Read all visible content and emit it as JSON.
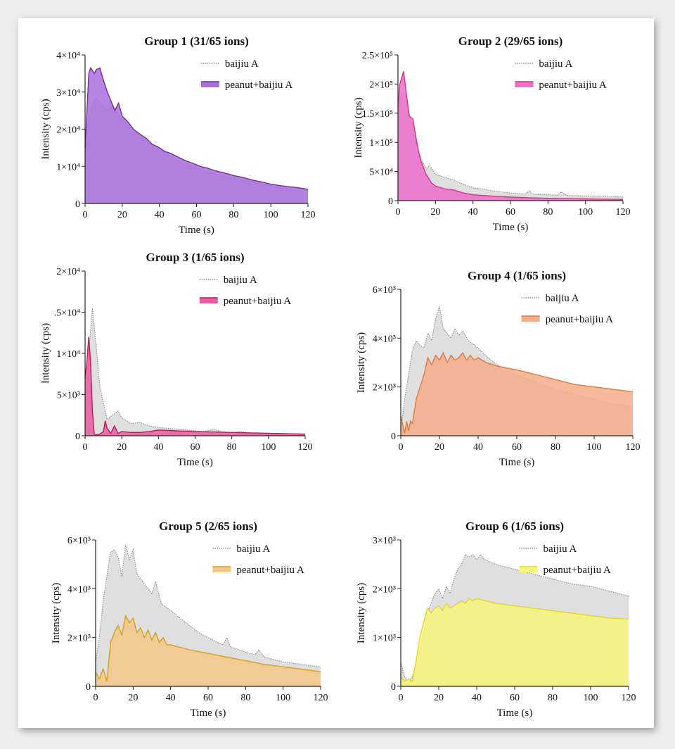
{
  "chart_data": [
    {
      "type": "area",
      "title": "Group 1 (31/65 ions)",
      "xlabel": "Time (s)",
      "ylabel": "Intensity (cps)",
      "xlim": [
        0,
        120
      ],
      "ylim": [
        0,
        40000
      ],
      "xticks": [
        "0",
        "20",
        "40",
        "60",
        "80",
        "100",
        "120"
      ],
      "yticks": [
        "0",
        "1×10⁴",
        "2×10⁴",
        "3×10⁴",
        "4×10⁴"
      ],
      "legend": "top-right",
      "series": [
        {
          "name": "baijiu A",
          "color": "#c8c8c8",
          "fill": "#d9d9d9",
          "dotted": true,
          "x": [
            0,
            2,
            4,
            6,
            8,
            10,
            12,
            15,
            18,
            20,
            25,
            30,
            35,
            40,
            45,
            50,
            55,
            60,
            65,
            70,
            75,
            80,
            85,
            90,
            95,
            100,
            105,
            110,
            115,
            120
          ],
          "y": [
            12000,
            22000,
            27000,
            28500,
            27000,
            26000,
            25000,
            26500,
            24000,
            22500,
            20000,
            18000,
            16000,
            14500,
            13000,
            11500,
            10500,
            9500,
            8500,
            8000,
            7300,
            6800,
            6300,
            5800,
            5300,
            4800,
            4300,
            3800,
            3400,
            3000
          ]
        },
        {
          "name": "peanut+baijiu A",
          "color": "#7a2e8c",
          "fill": "#a86ee0",
          "x": [
            0,
            2,
            3,
            5,
            6,
            8,
            10,
            12,
            14,
            16,
            18,
            20,
            23,
            26,
            30,
            33,
            36,
            40,
            43,
            46,
            50,
            54,
            58,
            62,
            66,
            70,
            75,
            80,
            85,
            90,
            95,
            100,
            105,
            110,
            115,
            120
          ],
          "y": [
            15000,
            35000,
            36500,
            35000,
            36000,
            36500,
            33000,
            30000,
            27500,
            25000,
            27000,
            23500,
            22000,
            20000,
            18500,
            17500,
            16000,
            15000,
            14000,
            13500,
            12500,
            11500,
            10800,
            10000,
            9500,
            8800,
            8200,
            7500,
            7000,
            6300,
            5800,
            5200,
            4800,
            4500,
            4200,
            3800
          ]
        }
      ]
    },
    {
      "type": "area",
      "title": "Group 2 (29/65 ions)",
      "xlabel": "Time (s)",
      "ylabel": "Intensity (cps)",
      "xlim": [
        0,
        120
      ],
      "ylim": [
        0,
        250000
      ],
      "xticks": [
        "0",
        "20",
        "40",
        "60",
        "80",
        "100",
        "120"
      ],
      "yticks": [
        "0",
        "5×10⁴",
        "1×10⁵",
        "1.5×10⁵",
        "2×10⁵",
        "2.5×10⁵"
      ],
      "legend": "top-right",
      "series": [
        {
          "name": "baijiu A",
          "color": "#c8c8c8",
          "fill": "#d9d9d9",
          "dotted": true,
          "x": [
            0,
            2,
            4,
            6,
            8,
            10,
            12,
            15,
            17,
            20,
            25,
            30,
            35,
            40,
            45,
            50,
            55,
            60,
            65,
            68,
            70,
            72,
            75,
            80,
            85,
            87,
            90,
            95,
            100,
            110,
            120
          ],
          "y": [
            150000,
            185000,
            175000,
            150000,
            120000,
            95000,
            75000,
            55000,
            60000,
            45000,
            40000,
            35000,
            28000,
            22000,
            20000,
            17000,
            15000,
            13000,
            12000,
            11000,
            17000,
            11000,
            10500,
            10000,
            9500,
            15000,
            9000,
            8500,
            8000,
            7500,
            6000
          ]
        },
        {
          "name": "peanut+baijiu A",
          "color": "#d63384",
          "fill": "#ec6fcc",
          "x": [
            0,
            1,
            3,
            4,
            6,
            8,
            10,
            12,
            15,
            18,
            20,
            25,
            30,
            35,
            40,
            50,
            60,
            70,
            80,
            90,
            100,
            110,
            120
          ],
          "y": [
            160000,
            200000,
            222000,
            195000,
            145000,
            140000,
            100000,
            70000,
            45000,
            30000,
            25000,
            20000,
            18000,
            13000,
            10000,
            8000,
            6000,
            5000,
            4000,
            3500,
            3000,
            2500,
            2000
          ]
        }
      ]
    },
    {
      "type": "area",
      "title": "Group 3 (1/65 ions)",
      "xlabel": "Time (s)",
      "ylabel": "Intensity (cps)",
      "xlim": [
        0,
        120
      ],
      "ylim": [
        0,
        20000
      ],
      "xticks": [
        "0",
        "20",
        "40",
        "60",
        "80",
        "100",
        "120"
      ],
      "yticks": [
        "0",
        "5×10³",
        "1×10⁴",
        ".5×10⁴",
        "2×10⁴"
      ],
      "legend": "top-right",
      "series": [
        {
          "name": "baijiu A",
          "color": "#c8c8c8",
          "fill": "#d9d9d9",
          "dotted": true,
          "x": [
            0,
            2,
            4,
            6,
            8,
            10,
            12,
            15,
            18,
            20,
            25,
            30,
            35,
            40,
            45,
            50,
            55,
            60,
            65,
            70,
            75,
            80,
            85,
            90,
            95,
            100,
            110,
            120
          ],
          "y": [
            1000,
            10000,
            15500,
            11000,
            6000,
            4000,
            2000,
            2500,
            3000,
            2200,
            1500,
            1600,
            1200,
            1000,
            900,
            800,
            700,
            600,
            500,
            800,
            450,
            400,
            500,
            350,
            300,
            300,
            250,
            200
          ]
        },
        {
          "name": "peanut+baijiu A",
          "color": "#c2185b",
          "fill": "#e85d9e",
          "x": [
            0,
            1,
            2,
            3,
            4,
            5,
            6,
            8,
            10,
            11,
            12,
            14,
            16,
            18,
            20,
            25,
            30,
            35,
            40,
            50,
            60,
            70,
            80,
            90,
            100,
            110,
            120
          ],
          "y": [
            7000,
            9000,
            12000,
            9000,
            3000,
            200,
            100,
            200,
            500,
            1800,
            900,
            300,
            1200,
            300,
            500,
            400,
            400,
            500,
            700,
            600,
            500,
            450,
            400,
            350,
            300,
            250,
            200
          ]
        }
      ]
    },
    {
      "type": "area",
      "title": "Group 4 (1/65 ions)",
      "xlabel": "Time (s)",
      "ylabel": "Intensity (cps)",
      "xlim": [
        0,
        120
      ],
      "ylim": [
        0,
        6000
      ],
      "xticks": [
        "0",
        "20",
        "40",
        "60",
        "80",
        "100",
        "120"
      ],
      "yticks": [
        "0",
        "2×10³",
        "4×10³",
        "6×10³"
      ],
      "legend": "top-right",
      "series": [
        {
          "name": "baijiu A",
          "color": "#c8c8c8",
          "fill": "#d9d9d9",
          "dotted": true,
          "x": [
            0,
            2,
            4,
            6,
            8,
            10,
            12,
            14,
            16,
            18,
            20,
            22,
            24,
            26,
            28,
            30,
            32,
            35,
            40,
            45,
            50,
            60,
            70,
            80,
            90,
            100,
            110,
            120
          ],
          "y": [
            200,
            1500,
            2500,
            3500,
            3900,
            3700,
            3600,
            4200,
            3900,
            4800,
            5300,
            4400,
            4200,
            4000,
            4400,
            4100,
            4300,
            3900,
            3600,
            3200,
            2900,
            2500,
            2200,
            1900,
            1700,
            1500,
            1300,
            1200
          ]
        },
        {
          "name": "peanut+baijiu A",
          "color": "#e07b39",
          "fill": "#f4ad8a",
          "x": [
            0,
            2,
            3,
            4,
            5,
            6,
            8,
            10,
            12,
            14,
            16,
            18,
            20,
            22,
            24,
            26,
            28,
            30,
            32,
            34,
            36,
            38,
            40,
            44,
            50,
            60,
            70,
            80,
            90,
            100,
            110,
            120
          ],
          "y": [
            800,
            100,
            600,
            200,
            600,
            500,
            1500,
            2000,
            2500,
            3200,
            2900,
            3300,
            3100,
            3400,
            3000,
            3300,
            3100,
            3200,
            3400,
            3100,
            3300,
            3100,
            3200,
            3000,
            2850,
            2700,
            2500,
            2300,
            2100,
            2000,
            1900,
            1800
          ]
        }
      ]
    },
    {
      "type": "area",
      "title": "Group 5 (2/65 ions)",
      "xlabel": "Time (s)",
      "ylabel": "Intensity (cps)",
      "xlim": [
        0,
        120
      ],
      "ylim": [
        0,
        6000
      ],
      "xticks": [
        "0",
        "20",
        "40",
        "60",
        "80",
        "100",
        "120"
      ],
      "yticks": [
        "0",
        "2×10³",
        "4×10³",
        "6×10³"
      ],
      "legend": "top-right",
      "series": [
        {
          "name": "baijiu A",
          "color": "#c8c8c8",
          "fill": "#d9d9d9",
          "dotted": true,
          "x": [
            0,
            2,
            4,
            6,
            8,
            10,
            12,
            14,
            16,
            18,
            20,
            22,
            25,
            30,
            32,
            35,
            40,
            45,
            50,
            55,
            60,
            65,
            68,
            70,
            72,
            75,
            80,
            85,
            87,
            90,
            95,
            100,
            110,
            120
          ],
          "y": [
            1000,
            2000,
            3500,
            4500,
            5500,
            5600,
            5300,
            4500,
            5800,
            5200,
            5600,
            4600,
            4300,
            3800,
            4300,
            3400,
            3100,
            2800,
            2500,
            2200,
            2000,
            1800,
            1700,
            2000,
            1600,
            1550,
            1400,
            1300,
            1500,
            1200,
            1100,
            1000,
            900,
            800
          ]
        },
        {
          "name": "peanut+baijiu A",
          "color": "#d4a017",
          "fill": "#f5c88a",
          "x": [
            0,
            2,
            4,
            6,
            8,
            10,
            12,
            14,
            16,
            18,
            20,
            22,
            24,
            26,
            28,
            30,
            32,
            34,
            36,
            38,
            40,
            45,
            50,
            60,
            70,
            80,
            90,
            100,
            110,
            120
          ],
          "y": [
            600,
            300,
            700,
            200,
            1800,
            2200,
            2500,
            2100,
            2900,
            2600,
            2800,
            2200,
            2400,
            2000,
            2300,
            1900,
            2200,
            1800,
            2000,
            1700,
            1700,
            1600,
            1500,
            1350,
            1200,
            1050,
            900,
            800,
            700,
            600
          ]
        }
      ]
    },
    {
      "type": "area",
      "title": "Group 6 (1/65 ions)",
      "xlabel": "Time (s)",
      "ylabel": "Intensity (cps)",
      "xlim": [
        0,
        120
      ],
      "ylim": [
        0,
        3000
      ],
      "xticks": [
        "0",
        "20",
        "40",
        "60",
        "80",
        "100",
        "120"
      ],
      "yticks": [
        "0",
        "1×10³",
        "2×10³",
        "3×10³"
      ],
      "legend": "top-right",
      "series": [
        {
          "name": "baijiu A",
          "color": "#c8c8c8",
          "fill": "#d9d9d9",
          "dotted": true,
          "x": [
            0,
            2,
            4,
            6,
            8,
            10,
            12,
            14,
            16,
            18,
            20,
            22,
            24,
            26,
            28,
            30,
            32,
            34,
            36,
            38,
            40,
            42,
            44,
            50,
            60,
            70,
            80,
            90,
            100,
            110,
            120
          ],
          "y": [
            500,
            200,
            100,
            200,
            400,
            700,
            1100,
            1500,
            1700,
            1900,
            2000,
            1800,
            2050,
            1900,
            2200,
            2400,
            2500,
            2700,
            2650,
            2700,
            2600,
            2700,
            2600,
            2500,
            2400,
            2300,
            2200,
            2100,
            2050,
            1950,
            1850
          ]
        },
        {
          "name": "peanut+baijiu A",
          "color": "#e6d52a",
          "fill": "#f7f57a",
          "x": [
            0,
            2,
            4,
            6,
            8,
            10,
            12,
            14,
            16,
            18,
            20,
            22,
            24,
            26,
            28,
            30,
            32,
            34,
            36,
            38,
            40,
            42,
            45,
            50,
            60,
            70,
            80,
            90,
            100,
            110,
            120
          ],
          "y": [
            200,
            100,
            150,
            100,
            500,
            1000,
            1300,
            1600,
            1500,
            1600,
            1650,
            1550,
            1700,
            1600,
            1650,
            1700,
            1750,
            1700,
            1800,
            1750,
            1800,
            1780,
            1750,
            1700,
            1650,
            1600,
            1550,
            1500,
            1450,
            1400,
            1380
          ]
        }
      ]
    }
  ]
}
